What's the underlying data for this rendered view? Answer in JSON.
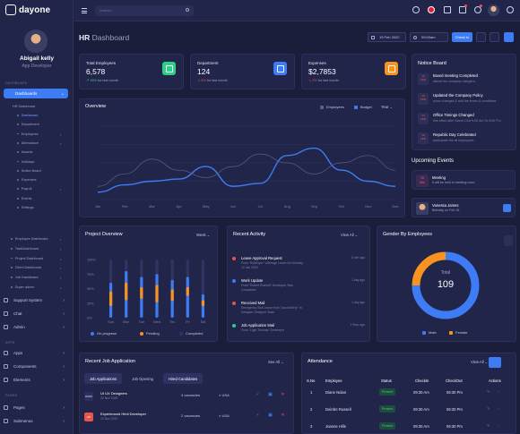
{
  "brand": {
    "name": "dayone"
  },
  "user": {
    "name": "Abigail kelly",
    "role": "App Developer"
  },
  "sidebar": {
    "section_dashboard": "DASHBOARD",
    "dashboard_label": "Dashboards",
    "hr_label": "HR Dashboard",
    "hr_items": [
      "Dashboard",
      "Department",
      "Employees",
      "Attendance",
      "Awards",
      "Holidays",
      "Notice Board",
      "Expenses",
      "Payroll",
      "Events",
      "Settings"
    ],
    "other_dashboards": [
      "Employee Dashboard",
      "TaskDashboard",
      "Project Dashboard",
      "Client Dashboard",
      "Job Dashboard",
      "Super admin"
    ],
    "main_items": [
      "Support System",
      "Chat",
      "Admin"
    ],
    "section_apps": "APPS",
    "apps_items": [
      "Apps",
      "Components",
      "Elements"
    ],
    "section_pages": "PAGES",
    "pages_items": [
      "Pages",
      "Submenus"
    ]
  },
  "topbar": {
    "search_placeholder": "Search..."
  },
  "header": {
    "title_bold": "HR",
    "title_light": "Dashboard",
    "date": "19 Feb 2020",
    "time": "09:00am",
    "checkin_label": "Check In"
  },
  "stats": [
    {
      "label": "Total Employees",
      "value": "6,578",
      "change": "15%",
      "change_suffix": "for last month",
      "direction": "up",
      "color": "#2dce89"
    },
    {
      "label": "Department",
      "value": "124",
      "change": "5%",
      "change_suffix": "for last month",
      "direction": "down",
      "color": "#3d7cf4"
    },
    {
      "label": "Expenses",
      "value": "$2,7853",
      "change": "3%",
      "change_suffix": "for last month",
      "direction": "down",
      "color": "#f7931e"
    }
  ],
  "notice_board": {
    "title": "Notice Board",
    "items": [
      {
        "day": "15",
        "month": "FEB",
        "title": "Board meeting Completed",
        "desc": "attend the company mangers...",
        "color": "#e8534b"
      },
      {
        "day": "16",
        "month": "FEB",
        "title": "Updated the Company Policy",
        "desc": "some changes & add the terms & conditions",
        "color": "#e8534b"
      },
      {
        "day": "17",
        "month": "FEB",
        "title": "Office Timings Changed",
        "desc": "this effect after March 01st 9:00 Am To 5:00 Pm",
        "color": "#e8534b"
      },
      {
        "day": "18",
        "month": "FEB",
        "title": "Republic Day Celebrated",
        "desc": "participate the all employees",
        "color": "#e8534b"
      }
    ]
  },
  "upcoming_events": {
    "title": "Upcoming Events",
    "items": [
      {
        "day": "25",
        "month": "Mar",
        "title": "Meeting",
        "desc": "It will be held in meeting room"
      },
      {
        "title": "Vanessa James",
        "desc": "Birthday on Feb 16"
      }
    ]
  },
  "overview": {
    "title": "Overview",
    "legend": [
      "Employees",
      "Budget"
    ],
    "period": "Year"
  },
  "chart_data": [
    {
      "type": "line",
      "title": "Overview",
      "categories": [
        "Jan",
        "Feb",
        "Mar",
        "Apr",
        "May",
        "Jun",
        "Jul",
        "Aug",
        "Sep",
        "Oct",
        "Nov",
        "Dec"
      ],
      "ylim": [
        0,
        100
      ],
      "series": [
        {
          "name": "Budget",
          "color": "#3d7cf4",
          "values": [
            10,
            20,
            25,
            28,
            45,
            18,
            22,
            60,
            70,
            40,
            25,
            18
          ]
        },
        {
          "name": "Employees",
          "color": "#5a5f86",
          "values": [
            18,
            35,
            55,
            40,
            30,
            45,
            62,
            50,
            35,
            50,
            60,
            40
          ]
        }
      ]
    },
    {
      "type": "bar",
      "title": "Project Overview",
      "categories": [
        "Sun",
        "Mon",
        "Tue",
        "Wed",
        "Thu",
        "Fri",
        "Sat"
      ],
      "ylim": [
        0,
        100
      ],
      "series": [
        {
          "name": "On progress",
          "color": "#3d7cf4",
          "values": [
            60,
            80,
            70,
            75,
            65,
            70,
            40
          ]
        },
        {
          "name": "Pending",
          "color": "#f7931e",
          "values": [
            25,
            30,
            20,
            30,
            20,
            15,
            10
          ]
        },
        {
          "name": "Completed",
          "color": "#2f3462",
          "values": [
            100,
            100,
            100,
            100,
            100,
            100,
            100
          ]
        }
      ]
    },
    {
      "type": "pie",
      "title": "Gender By Employees",
      "values": [
        75,
        25
      ],
      "labels": [
        "Male",
        "Female"
      ],
      "colors": [
        "#3d7cf4",
        "#f7931e"
      ]
    }
  ],
  "project_overview": {
    "title": "Project Overview",
    "period": "Week",
    "legend": [
      "On progress",
      "Pending",
      "Completed"
    ],
    "ticks": [
      "100%",
      "75%",
      "50%",
      "25%",
      "0%"
    ]
  },
  "recent_activity": {
    "title": "Recent Activity",
    "view_all": "View All",
    "items": [
      {
        "title": "Leave Approval Request",
        "desc": "From \"RuthDyer\" UiDesign Leave On Monday 12 Jan 2020",
        "time": "6 min ago",
        "color": "#e8534b"
      },
      {
        "title": "Work Update",
        "desc": "From \"Robert Ruchell\" Developer Task Completed",
        "time": "1 day ago",
        "color": "#3d7cf4"
      },
      {
        "title": "Received Mail",
        "desc": "Emergency Sick Leave from \"Jacob Berry\" In Designer Designer Team",
        "time": "1 day ago",
        "color": "#e8534b"
      },
      {
        "title": "Job Application Mail",
        "desc": "From \"Ligin Thomas\" Developer",
        "time": "1 Hour ago",
        "color": "#2dce89"
      }
    ]
  },
  "gender": {
    "title": "Gender By Employees",
    "total_label": "Total",
    "total_value": "109",
    "legend": [
      "Male",
      "Female"
    ]
  },
  "recent_jobs": {
    "title": "Recent Job Application",
    "see_all": "See All",
    "tabs": [
      "Job Applications",
      "Job Opening",
      "Hired Candidates"
    ],
    "rows": [
      {
        "logo": "UI/UX",
        "title": "UI UX Designers",
        "date": "22 Nov 2020",
        "vacancies": "4 vacancies",
        "location": "USA",
        "logo_color": "#2a2f5e"
      },
      {
        "logo": "H5",
        "title": "Experienced Html Developer",
        "date": "24 Nov 2020",
        "vacancies": "2 vacancies",
        "location": "USA",
        "logo_color": "#e8534b"
      }
    ]
  },
  "attendance": {
    "title": "Attendance",
    "view_all": "View All",
    "headers": [
      "S.No",
      "Employee",
      "Status",
      "CheckIn",
      "CheckOut",
      "Actions"
    ],
    "rows": [
      {
        "no": "1",
        "name": "Diane Nolan",
        "status": "Present",
        "checkin": "09:30 Am",
        "checkout": "06:30 Pm"
      },
      {
        "no": "2",
        "name": "Deirdre Russell",
        "status": "Present",
        "checkin": "09:30 Am",
        "checkout": "06:30 Pm"
      },
      {
        "no": "3",
        "name": "Joanne Hills",
        "status": "Present",
        "checkin": "09:30 Am",
        "checkout": "06:30 Pm"
      }
    ]
  }
}
